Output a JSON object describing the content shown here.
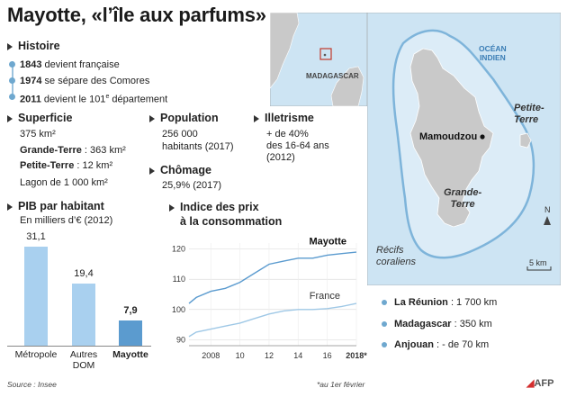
{
  "title": "Mayotte, «l’île aux parfums»",
  "histoire": {
    "heading": "Histoire",
    "events": [
      {
        "year": "1843",
        "text": " devient française"
      },
      {
        "year": "1974",
        "text": " se sépare des Comores"
      },
      {
        "year": "2011",
        "text": " devient le 101",
        "sup": "e",
        "text2": " département"
      }
    ]
  },
  "superficie": {
    "heading": "Superficie",
    "total": "375 km²",
    "gt_label": "Grande-Terre",
    "gt_value": " : 363 km²",
    "pt_label": "Petite-Terre",
    "pt_value": " : 12 km²",
    "lagon": "Lagon de 1 000 km²"
  },
  "population": {
    "heading": "Population",
    "line1": "256 000",
    "line2": "habitants (2017)"
  },
  "chomage": {
    "heading": "Chômage",
    "value": "25,9% (2017)"
  },
  "illetrisme": {
    "heading": "Illetrisme",
    "line1": "+ de 40%",
    "line2": "des  16-64 ans",
    "line3": "(2012)"
  },
  "pib": {
    "heading": "PIB par habitant",
    "subheading": "En milliers d’€ (2012)",
    "bars": [
      {
        "label": "Métropole",
        "value": "31,1",
        "num": 31.1,
        "color": "#a9d0ef"
      },
      {
        "label": "Autres DOM",
        "value": "19,4",
        "num": 19.4,
        "color": "#a9d0ef"
      },
      {
        "label": "Mayotte",
        "value": "7,9",
        "num": 7.9,
        "color": "#5b9bcf"
      }
    ]
  },
  "indice": {
    "heading_l1": "Indice des prix",
    "heading_l2": "à la consommation",
    "series_mayotte": "Mayotte",
    "series_france": "France",
    "yticks": [
      "120",
      "110",
      "100",
      "90"
    ],
    "xticks": [
      "2008",
      "10",
      "12",
      "14",
      "16",
      "2018*"
    ]
  },
  "chart_data": {
    "type": "line",
    "title": "Indice des prix à la consommation",
    "x": [
      2006.5,
      2007,
      2008,
      2009,
      2010,
      2011,
      2012,
      2013,
      2014,
      2015,
      2016,
      2017,
      2018
    ],
    "series": [
      {
        "name": "Mayotte",
        "color": "#5b9bcf",
        "values": [
          102,
          104,
          106,
          107,
          109,
          112,
          115,
          116,
          117,
          117,
          118,
          118.5,
          119
        ]
      },
      {
        "name": "France",
        "color": "#9fc8e6",
        "values": [
          91,
          92.5,
          93.5,
          94.5,
          95.5,
          97,
          98.5,
          99.5,
          100,
          100,
          100.3,
          101,
          102
        ]
      }
    ],
    "ylim": [
      88,
      122
    ],
    "grid": true
  },
  "map": {
    "inset_label": "MADAGASCAR",
    "ocean_l1": "OCÉAN",
    "ocean_l2": "INDIEN",
    "petite_terre_l1": "Petite-",
    "petite_terre_l2": "Terre",
    "mamoudzou": "Mamoudzou",
    "grande_terre_l1": "Grande-",
    "grande_terre_l2": "Terre",
    "recifs_l1": "Récifs",
    "recifs_l2": "coraliens",
    "scale": "5 km",
    "north": "N",
    "colors": {
      "sea": "#cde4f3",
      "land": "#c9c9c9",
      "reef": "#7eb4da"
    }
  },
  "distances": [
    {
      "name": "La Réunion",
      "value": " : 1 700 km"
    },
    {
      "name": "Madagascar",
      "value": " : 350 km"
    },
    {
      "name": "Anjouan",
      "value": " : - de 70 km"
    }
  ],
  "footer": {
    "source": "Source : Insee",
    "note": "*au 1er février",
    "agency": "AFP"
  }
}
